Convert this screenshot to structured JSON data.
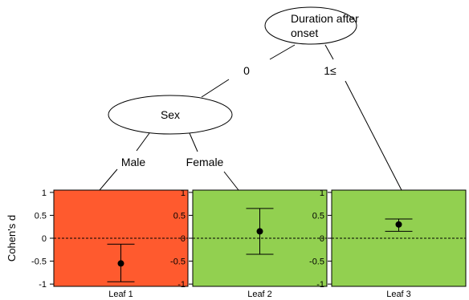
{
  "tree": {
    "root": {
      "label_line1": "Duration after",
      "label_line2": "onset"
    },
    "edges": {
      "root_left": "0",
      "root_right": "1≤",
      "sex_left": "Male",
      "sex_right": "Female"
    },
    "sex_node": {
      "label": "Sex"
    }
  },
  "colors": {
    "leaf1": "#ff5a2e",
    "leaf2": "#92d050",
    "leaf3": "#92d050"
  },
  "chart_data": {
    "type": "forest",
    "ylabel": "Cohen's d",
    "ylim": [
      -1,
      1
    ],
    "yticks": [
      1,
      0.5,
      0,
      -0.5,
      -1
    ],
    "reference_line": 0,
    "leaves": [
      {
        "name": "Leaf 1",
        "estimate": -0.55,
        "lower": -0.95,
        "upper": -0.13
      },
      {
        "name": "Leaf 2",
        "estimate": 0.15,
        "lower": -0.35,
        "upper": 0.65
      },
      {
        "name": "Leaf 3",
        "estimate": 0.3,
        "lower": 0.15,
        "upper": 0.42
      }
    ]
  }
}
